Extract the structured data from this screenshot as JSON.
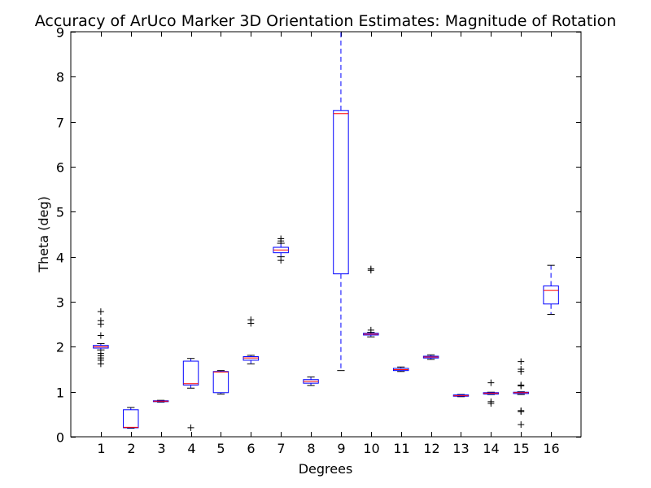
{
  "chart_data": {
    "type": "box",
    "title": "Accuracy of ArUco Marker 3D Orientation Estimates: Magnitude of Rotation",
    "xlabel": "Degrees",
    "ylabel": "Theta (deg)",
    "ylim": [
      0,
      9
    ],
    "yticks": [
      "0",
      "1",
      "2",
      "3",
      "4",
      "5",
      "6",
      "7",
      "8",
      "9"
    ],
    "grid": false,
    "colors": {
      "box": "#0000ff",
      "median": "#ff0000",
      "whisker": "#0000ff",
      "outlier": "#000000",
      "axis": "#000000"
    },
    "categories": [
      "1",
      "2",
      "3",
      "4",
      "5",
      "6",
      "7",
      "8",
      "9",
      "10",
      "11",
      "12",
      "13",
      "14",
      "15",
      "16"
    ],
    "boxes": [
      {
        "category": "1",
        "whisker_low": 1.93,
        "q1": 1.97,
        "median": 2.0,
        "q3": 2.03,
        "whisker_high": 2.07,
        "outliers": [
          1.62,
          1.7,
          1.75,
          1.8,
          1.85,
          2.25,
          2.5,
          2.58,
          2.78
        ]
      },
      {
        "category": "2",
        "whisker_low": 0.19,
        "q1": 0.2,
        "median": 0.21,
        "q3": 0.6,
        "whisker_high": 0.65,
        "outliers": []
      },
      {
        "category": "3",
        "whisker_low": 0.77,
        "q1": 0.78,
        "median": 0.79,
        "q3": 0.8,
        "whisker_high": 0.81,
        "outliers": []
      },
      {
        "category": "4",
        "whisker_low": 1.08,
        "q1": 1.15,
        "median": 1.18,
        "q3": 1.68,
        "whisker_high": 1.74,
        "outliers": [
          0.2
        ]
      },
      {
        "category": "5",
        "whisker_low": 0.95,
        "q1": 0.98,
        "median": 1.44,
        "q3": 1.45,
        "whisker_high": 1.47,
        "outliers": []
      },
      {
        "category": "6",
        "whisker_low": 1.62,
        "q1": 1.7,
        "median": 1.75,
        "q3": 1.78,
        "whisker_high": 1.81,
        "outliers": [
          2.52,
          2.6
        ]
      },
      {
        "category": "7",
        "whisker_low": 4.0,
        "q1": 4.09,
        "median": 4.15,
        "q3": 4.21,
        "whisker_high": 4.3,
        "outliers": [
          3.92,
          4.35,
          4.4
        ]
      },
      {
        "category": "8",
        "whisker_low": 1.14,
        "q1": 1.19,
        "median": 1.23,
        "q3": 1.27,
        "whisker_high": 1.33,
        "outliers": []
      },
      {
        "category": "9",
        "whisker_low": 1.47,
        "q1": 3.62,
        "median": 7.18,
        "q3": 7.25,
        "whisker_high": 9.0,
        "outliers": []
      },
      {
        "category": "10",
        "whisker_low": 2.22,
        "q1": 2.26,
        "median": 2.28,
        "q3": 2.3,
        "whisker_high": 2.32,
        "outliers": [
          2.37,
          3.7,
          3.73
        ]
      },
      {
        "category": "11",
        "whisker_low": 1.45,
        "q1": 1.47,
        "median": 1.49,
        "q3": 1.52,
        "whisker_high": 1.55,
        "outliers": []
      },
      {
        "category": "12",
        "whisker_low": 1.72,
        "q1": 1.75,
        "median": 1.77,
        "q3": 1.79,
        "whisker_high": 1.82,
        "outliers": []
      },
      {
        "category": "13",
        "whisker_low": 0.89,
        "q1": 0.9,
        "median": 0.91,
        "q3": 0.93,
        "whisker_high": 0.94,
        "outliers": []
      },
      {
        "category": "14",
        "whisker_low": 0.94,
        "q1": 0.95,
        "median": 0.97,
        "q3": 0.98,
        "whisker_high": 0.99,
        "outliers": [
          0.74,
          0.78,
          1.2
        ]
      },
      {
        "category": "15",
        "whisker_low": 0.94,
        "q1": 0.96,
        "median": 0.98,
        "q3": 0.99,
        "whisker_high": 1.0,
        "outliers": [
          0.27,
          0.56,
          0.58,
          1.13,
          1.15,
          1.45,
          1.5,
          1.67
        ]
      },
      {
        "category": "16",
        "whisker_low": 2.72,
        "q1": 2.95,
        "median": 3.25,
        "q3": 3.35,
        "whisker_high": 3.81,
        "outliers": []
      }
    ]
  }
}
